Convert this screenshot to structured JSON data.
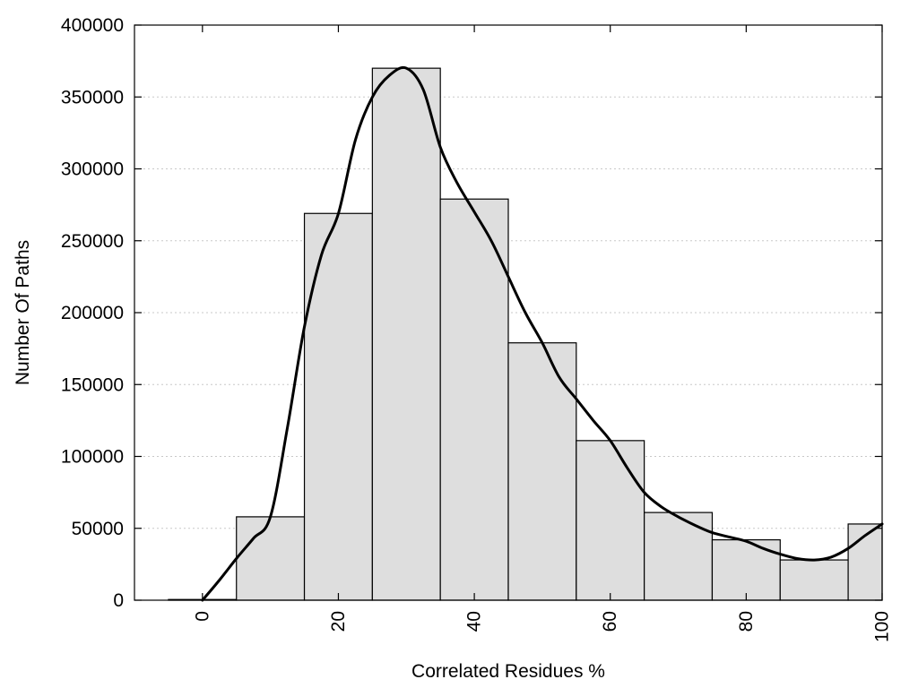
{
  "chart_data": {
    "type": "bar",
    "title": "",
    "xlabel": "Correlated Residues %",
    "ylabel": "Number Of Paths",
    "xlim": [
      -10,
      100
    ],
    "ylim": [
      0,
      400000
    ],
    "x_ticks": [
      0,
      20,
      40,
      60,
      80,
      100
    ],
    "x_tick_labels": [
      "0",
      "20",
      "40",
      "60",
      "80",
      "100"
    ],
    "y_ticks": [
      0,
      50000,
      100000,
      150000,
      200000,
      250000,
      300000,
      350000,
      400000
    ],
    "y_tick_labels": [
      "0",
      "50000",
      "100000",
      "150000",
      "200000",
      "250000",
      "300000",
      "350000",
      "400000"
    ],
    "grid": true,
    "bin_width": 10,
    "bins": [
      {
        "center": 0,
        "value": 500
      },
      {
        "center": 10,
        "value": 58000
      },
      {
        "center": 20,
        "value": 269000
      },
      {
        "center": 30,
        "value": 370000
      },
      {
        "center": 40,
        "value": 279000
      },
      {
        "center": 50,
        "value": 179000
      },
      {
        "center": 60,
        "value": 111000
      },
      {
        "center": 70,
        "value": 61000
      },
      {
        "center": 80,
        "value": 42000
      },
      {
        "center": 90,
        "value": 28000
      },
      {
        "center": 100,
        "value": 53000
      }
    ],
    "curve": {
      "type": "line",
      "points": [
        [
          0,
          0
        ],
        [
          2.5,
          14000
        ],
        [
          5,
          29000
        ],
        [
          7.5,
          43000
        ],
        [
          10,
          58000
        ],
        [
          12.5,
          120000
        ],
        [
          15,
          190000
        ],
        [
          17.5,
          240000
        ],
        [
          20,
          269000
        ],
        [
          22.5,
          320000
        ],
        [
          25,
          350000
        ],
        [
          27.5,
          365000
        ],
        [
          30,
          370000
        ],
        [
          32.5,
          355000
        ],
        [
          35,
          315000
        ],
        [
          37.5,
          290000
        ],
        [
          40,
          270000
        ],
        [
          42.5,
          250000
        ],
        [
          45,
          225000
        ],
        [
          47.5,
          200000
        ],
        [
          50,
          179000
        ],
        [
          52.5,
          155000
        ],
        [
          55,
          140000
        ],
        [
          57.5,
          125000
        ],
        [
          60,
          111000
        ],
        [
          62.5,
          92000
        ],
        [
          65,
          75000
        ],
        [
          67.5,
          65000
        ],
        [
          70,
          58000
        ],
        [
          72.5,
          52000
        ],
        [
          75,
          47000
        ],
        [
          77.5,
          44000
        ],
        [
          80,
          41000
        ],
        [
          82.5,
          36000
        ],
        [
          85,
          32000
        ],
        [
          87.5,
          29000
        ],
        [
          90,
          28000
        ],
        [
          92.5,
          30000
        ],
        [
          95,
          36000
        ],
        [
          97.5,
          45000
        ],
        [
          100,
          53000
        ]
      ]
    }
  }
}
